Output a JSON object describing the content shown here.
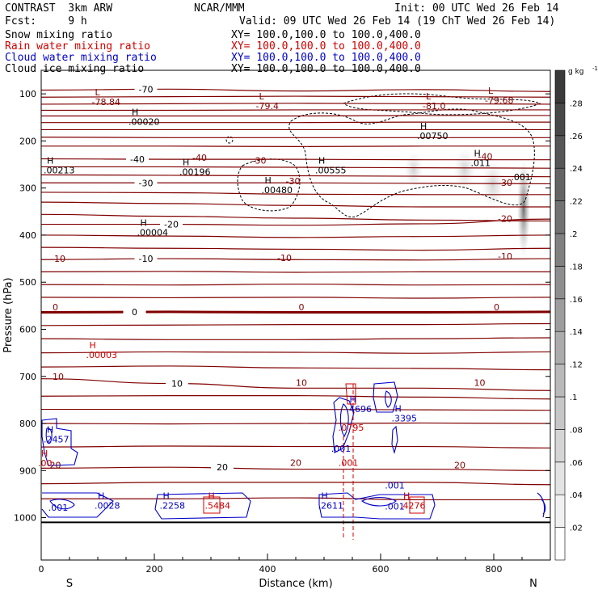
{
  "header": {
    "title": "CONTRAST  3km ARW",
    "org": "NCAR/MMM",
    "init": "Init: 00 UTC Wed 26 Feb 14",
    "fcst": "Fcst:     9 h",
    "valid": "Valid: 09 UTC Wed 26 Feb 14 (19 ChT Wed 26 Feb 14)",
    "lines": [
      {
        "label": "Snow mixing ratio",
        "xy": "XY= 100.0,100.0 to 100.0,400.0",
        "color": "#000000"
      },
      {
        "label": "Rain water mixing ratio",
        "xy": "XY= 100.0,100.0 to 100.0,400.0",
        "color": "#d00000"
      },
      {
        "label": "Cloud water mixing ratio",
        "xy": "XY= 100.0,100.0 to 100.0,400.0",
        "color": "#0000c8"
      },
      {
        "label": "Cloud ice mixing ratio",
        "xy": "XY= 100.0,100.0 to 100.0,400.0",
        "color": "#000000"
      }
    ]
  },
  "chart_data": {
    "type": "contour-cross-section",
    "xlabel": "Distance (km)",
    "ylabel": "Pressure (hPa)",
    "xlim": [
      0,
      900
    ],
    "ylim": [
      1090,
      50
    ],
    "xticks": [
      0,
      200,
      400,
      600,
      800
    ],
    "yticks": [
      100,
      200,
      300,
      400,
      500,
      600,
      700,
      800,
      900,
      1000
    ],
    "x_end_labels": {
      "left": "S",
      "right": "N"
    },
    "colorbar": {
      "unit": "g kg",
      "unit_exp": "-1",
      "ticks": [
        ".02",
        ".04",
        ".06",
        ".08",
        ".1",
        ".12",
        ".14",
        ".16",
        ".18",
        ".2",
        ".22",
        ".24",
        ".26",
        ".28"
      ],
      "ramp_light": "#ffffff",
      "ramp_dark": "#3a3a3a"
    },
    "colors": {
      "temperature": "#800000",
      "cloud_water": "#0000c8",
      "rain": "#d00000",
      "ice": "#000000"
    },
    "temperature_contours": [
      {
        "p": [
          92,
          90,
          94,
          91,
          95
        ],
        "label": "-70",
        "label_x": 185
      },
      {
        "p": [
          107,
          106,
          105,
          106,
          107
        ]
      },
      {
        "p": [
          122,
          121,
          120,
          121,
          122
        ]
      },
      {
        "p": [
          135,
          135,
          134,
          134,
          134
        ]
      },
      {
        "p": [
          147,
          147,
          147,
          146,
          146
        ]
      },
      {
        "p": [
          161,
          161,
          161,
          160,
          160
        ]
      },
      {
        "p": [
          176,
          176,
          176,
          176,
          176
        ]
      },
      {
        "p": [
          192,
          193,
          193,
          193,
          193
        ]
      },
      {
        "p": [
          211,
          211,
          212,
          211,
          211
        ]
      },
      {
        "p": [
          238,
          239,
          239,
          240,
          240
        ],
        "label": "-40",
        "label_x": 170
      },
      {
        "p": [
          255,
          255,
          256,
          257,
          258
        ]
      },
      {
        "p": [
          272,
          273,
          274,
          275,
          276
        ]
      },
      {
        "p": [
          289,
          289,
          289,
          290,
          291
        ],
        "label": "-30",
        "label_x": 185
      },
      {
        "p": [
          309,
          310,
          313,
          314,
          314
        ]
      },
      {
        "p": [
          330,
          333,
          337,
          340,
          340
        ]
      },
      {
        "p": [
          356,
          360,
          364,
          368,
          370
        ]
      },
      {
        "p": [
          377,
          377,
          379,
          376,
          366
        ],
        "label": "-20",
        "label_x": 230
      },
      {
        "p": [
          400,
          402,
          405,
          403,
          400
        ]
      },
      {
        "p": [
          426,
          428,
          430,
          432,
          428
        ]
      },
      {
        "p": [
          452,
          450,
          452,
          453,
          450
        ],
        "label": "-10",
        "label_x": 185
      },
      {
        "p": [
          478,
          477,
          479,
          478,
          478
        ]
      },
      {
        "p": [
          505,
          506,
          504,
          506,
          505
        ]
      },
      {
        "p": [
          532,
          533,
          532,
          534,
          532
        ]
      },
      {
        "p": [
          564,
          563,
          564,
          564,
          563
        ],
        "label": "0",
        "label_x": 165,
        "bold": true
      },
      {
        "p": [
          592,
          591,
          590,
          590,
          588
        ]
      },
      {
        "p": [
          620,
          622,
          622,
          620,
          618
        ]
      },
      {
        "p": [
          650,
          648,
          649,
          651,
          648
        ]
      },
      {
        "p": [
          680,
          678,
          682,
          683,
          686
        ]
      },
      {
        "p": [
          705,
          715,
          725,
          725,
          730
        ],
        "label": "10",
        "label_x": 240
      },
      {
        "p": [
          742,
          741,
          741,
          744,
          748
        ]
      },
      {
        "p": [
          770,
          770,
          770,
          771,
          772
        ]
      },
      {
        "p": [
          800,
          801,
          800,
          799,
          800
        ]
      },
      {
        "p": [
          850,
          848,
          849,
          849,
          852
        ]
      },
      {
        "p": [
          895,
          893,
          897,
          897,
          900
        ],
        "label": "20",
        "label_x": 320
      },
      {
        "p": [
          928,
          925,
          925,
          925,
          930
        ]
      },
      {
        "p": [
          960,
          960,
          958,
          962,
          962
        ]
      },
      {
        "p": [
          1010,
          1010,
          1010,
          1010,
          1010
        ]
      }
    ],
    "min_max_labels": [
      {
        "type": "L",
        "x": 95,
        "p": 103,
        "value": "-78.84",
        "color": "#800000"
      },
      {
        "type": "L",
        "x": 385,
        "p": 112,
        "value": "-79.4",
        "color": "#800000"
      },
      {
        "type": "L",
        "x": 680,
        "p": 112,
        "value": "-81.0",
        "color": "#800000"
      },
      {
        "type": "L",
        "x": 790,
        "p": 100,
        "value": "-79.68",
        "color": "#800000"
      },
      {
        "type": "H",
        "x": 160,
        "p": 145,
        "value": ".00020",
        "color": "#000000"
      },
      {
        "type": "H",
        "x": 670,
        "p": 175,
        "value": ".00750",
        "color": "#000000"
      },
      {
        "type": "H",
        "x": 10,
        "p": 248,
        "value": ".00213",
        "color": "#000000"
      },
      {
        "type": "H",
        "x": 250,
        "p": 252,
        "value": ".00196",
        "color": "#000000"
      },
      {
        "type": "H",
        "x": 490,
        "p": 248,
        "value": ".00555",
        "color": "#000000"
      },
      {
        "type": "H",
        "x": 765,
        "p": 233,
        "value": ".011",
        "color": "#000000"
      },
      {
        "type": "H",
        "x": 395,
        "p": 290,
        "value": ".00480",
        "color": "#000000"
      },
      {
        "type": "H",
        "x": 175,
        "p": 380,
        "value": ".00004",
        "color": "#000000"
      },
      {
        "type": "H",
        "x": 85,
        "p": 640,
        "value": ".00003",
        "color": "#d00000"
      },
      {
        "type": "H",
        "x": 545,
        "p": 755,
        "value": ".4696",
        "color": "#0000c8"
      },
      {
        "type": "H",
        "x": 625,
        "p": 775,
        "value": ".3395",
        "color": "#0000c8"
      },
      {
        "type": "H",
        "x": 10,
        "p": 820,
        "value": ".2457",
        "color": "#0000c8"
      },
      {
        "type": "H",
        "x": 0,
        "p": 870,
        "value": ".00",
        "color": "#d00000"
      },
      {
        "type": "H",
        "x": 100,
        "p": 960,
        "value": ".0028",
        "color": "#0000c8"
      },
      {
        "type": "H",
        "x": 215,
        "p": 960,
        "value": ".2258",
        "color": "#0000c8"
      },
      {
        "type": "H",
        "x": 295,
        "p": 960,
        "value": ".5484",
        "color": "#d00000"
      },
      {
        "type": "H",
        "x": 495,
        "p": 960,
        "value": ".2611",
        "color": "#0000c8"
      },
      {
        "type": "H",
        "x": 640,
        "p": 960,
        "value": ".4276",
        "color": "#d00000"
      }
    ],
    "extra_labels": [
      {
        "x": 385,
        "p": 248,
        "text": "-30",
        "color": "#800000"
      },
      {
        "x": 445,
        "p": 292,
        "text": "-30",
        "color": "#800000"
      },
      {
        "x": 280,
        "p": 242,
        "text": "-40",
        "color": "#800000"
      },
      {
        "x": 785,
        "p": 240,
        "text": "-40",
        "color": "#800000"
      },
      {
        "x": 820,
        "p": 295,
        "text": "-30",
        "color": "#800000"
      },
      {
        "x": 820,
        "p": 372,
        "text": "-20",
        "color": "#800000"
      },
      {
        "x": 820,
        "p": 452,
        "text": "-10",
        "color": "#800000"
      },
      {
        "x": 805,
        "p": 560,
        "text": "0",
        "color": "#800000"
      },
      {
        "x": 460,
        "p": 560,
        "text": "0",
        "color": "#800000"
      },
      {
        "x": 25,
        "p": 560,
        "text": "0",
        "color": "#800000"
      },
      {
        "x": 30,
        "p": 457,
        "text": "-10",
        "color": "#800000"
      },
      {
        "x": 430,
        "p": 455,
        "text": "-10",
        "color": "#800000"
      },
      {
        "x": 30,
        "p": 707,
        "text": "10",
        "color": "#800000"
      },
      {
        "x": 460,
        "p": 720,
        "text": "10",
        "color": "#800000"
      },
      {
        "x": 775,
        "p": 720,
        "text": "10",
        "color": "#800000"
      },
      {
        "x": 25,
        "p": 895,
        "text": "20",
        "color": "#800000"
      },
      {
        "x": 450,
        "p": 890,
        "text": "20",
        "color": "#800000"
      },
      {
        "x": 740,
        "p": 895,
        "text": "20",
        "color": "#800000"
      },
      {
        "x": 848,
        "p": 283,
        "text": ".001",
        "color": "#000000"
      },
      {
        "x": 625,
        "p": 938,
        "text": ".001",
        "color": "#0000c8"
      },
      {
        "x": 625,
        "p": 983,
        "text": ".001",
        "color": "#0000c8"
      },
      {
        "x": 530,
        "p": 860,
        "text": ".001",
        "color": "#0000c8"
      },
      {
        "x": 30,
        "p": 985,
        "text": ".001",
        "color": "#0000c8"
      },
      {
        "x": 548,
        "p": 815,
        "text": ".0795",
        "color": "#d00000"
      },
      {
        "x": 543,
        "p": 890,
        "text": ".001",
        "color": "#d00000"
      }
    ]
  }
}
